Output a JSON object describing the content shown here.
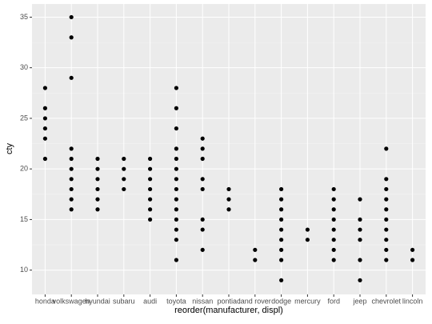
{
  "chart_data": {
    "type": "strip",
    "x_label": "reorder(manufacturer, displ)",
    "y_label": "cty",
    "categories": [
      "honda",
      "volkswagen",
      "hyundai",
      "subaru",
      "audi",
      "toyota",
      "nissan",
      "pontiac",
      "land rover",
      "dodge",
      "mercury",
      "ford",
      "jeep",
      "chevrolet",
      "lincoln"
    ],
    "values": [
      [
        28,
        26,
        25,
        24,
        23,
        21
      ],
      [
        35,
        33,
        29,
        22,
        21,
        20,
        19,
        18,
        17,
        16
      ],
      [
        21,
        20,
        19,
        18,
        17,
        16
      ],
      [
        21,
        20,
        19,
        18
      ],
      [
        21,
        20,
        19,
        18,
        17,
        16,
        15
      ],
      [
        28,
        26,
        24,
        22,
        21,
        20,
        19,
        18,
        17,
        16,
        15,
        14,
        13,
        11
      ],
      [
        23,
        22,
        21,
        19,
        18,
        15,
        14,
        12
      ],
      [
        18,
        17,
        16
      ],
      [
        12,
        11
      ],
      [
        18,
        17,
        16,
        15,
        14,
        13,
        12,
        11,
        9
      ],
      [
        14,
        13
      ],
      [
        18,
        17,
        16,
        15,
        14,
        13,
        12,
        11
      ],
      [
        17,
        15,
        14,
        13,
        11,
        9
      ],
      [
        22,
        19,
        18,
        17,
        16,
        15,
        14,
        13,
        12,
        11
      ],
      [
        12,
        11
      ]
    ],
    "color": "#000000",
    "ylim": [
      7.6,
      36.3
    ],
    "yticks": [
      10,
      15,
      20,
      25,
      30,
      35
    ],
    "grid": true
  }
}
